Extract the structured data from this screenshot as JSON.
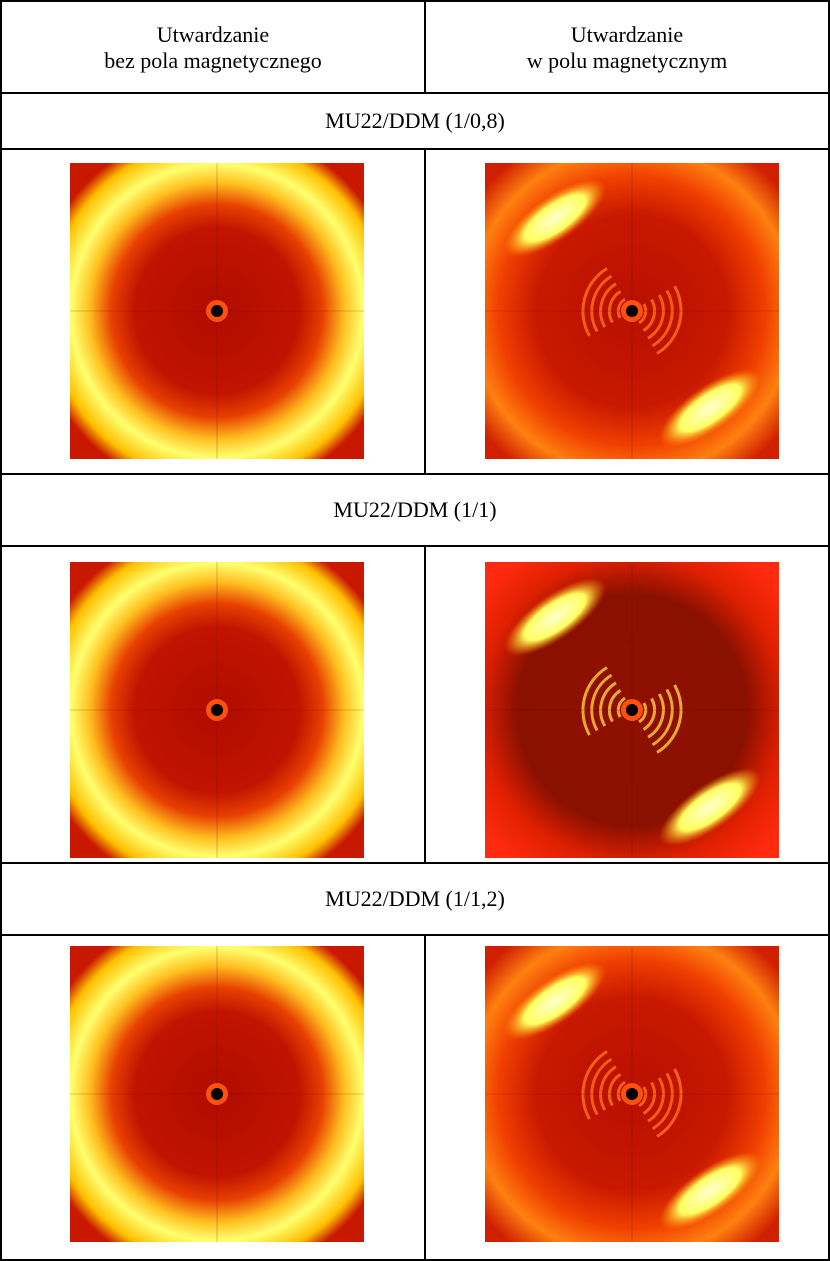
{
  "header": {
    "left": [
      "Utwardzanie",
      "bez pola magnetycznego"
    ],
    "right": [
      "Utwardzanie",
      "w polu magnetycznym"
    ]
  },
  "sections": [
    {
      "label": "MU22/DDM (1/0,8)"
    },
    {
      "label": "MU22/DDM (1/1)"
    },
    {
      "label": "MU22/DDM (1/1,2)"
    }
  ]
}
